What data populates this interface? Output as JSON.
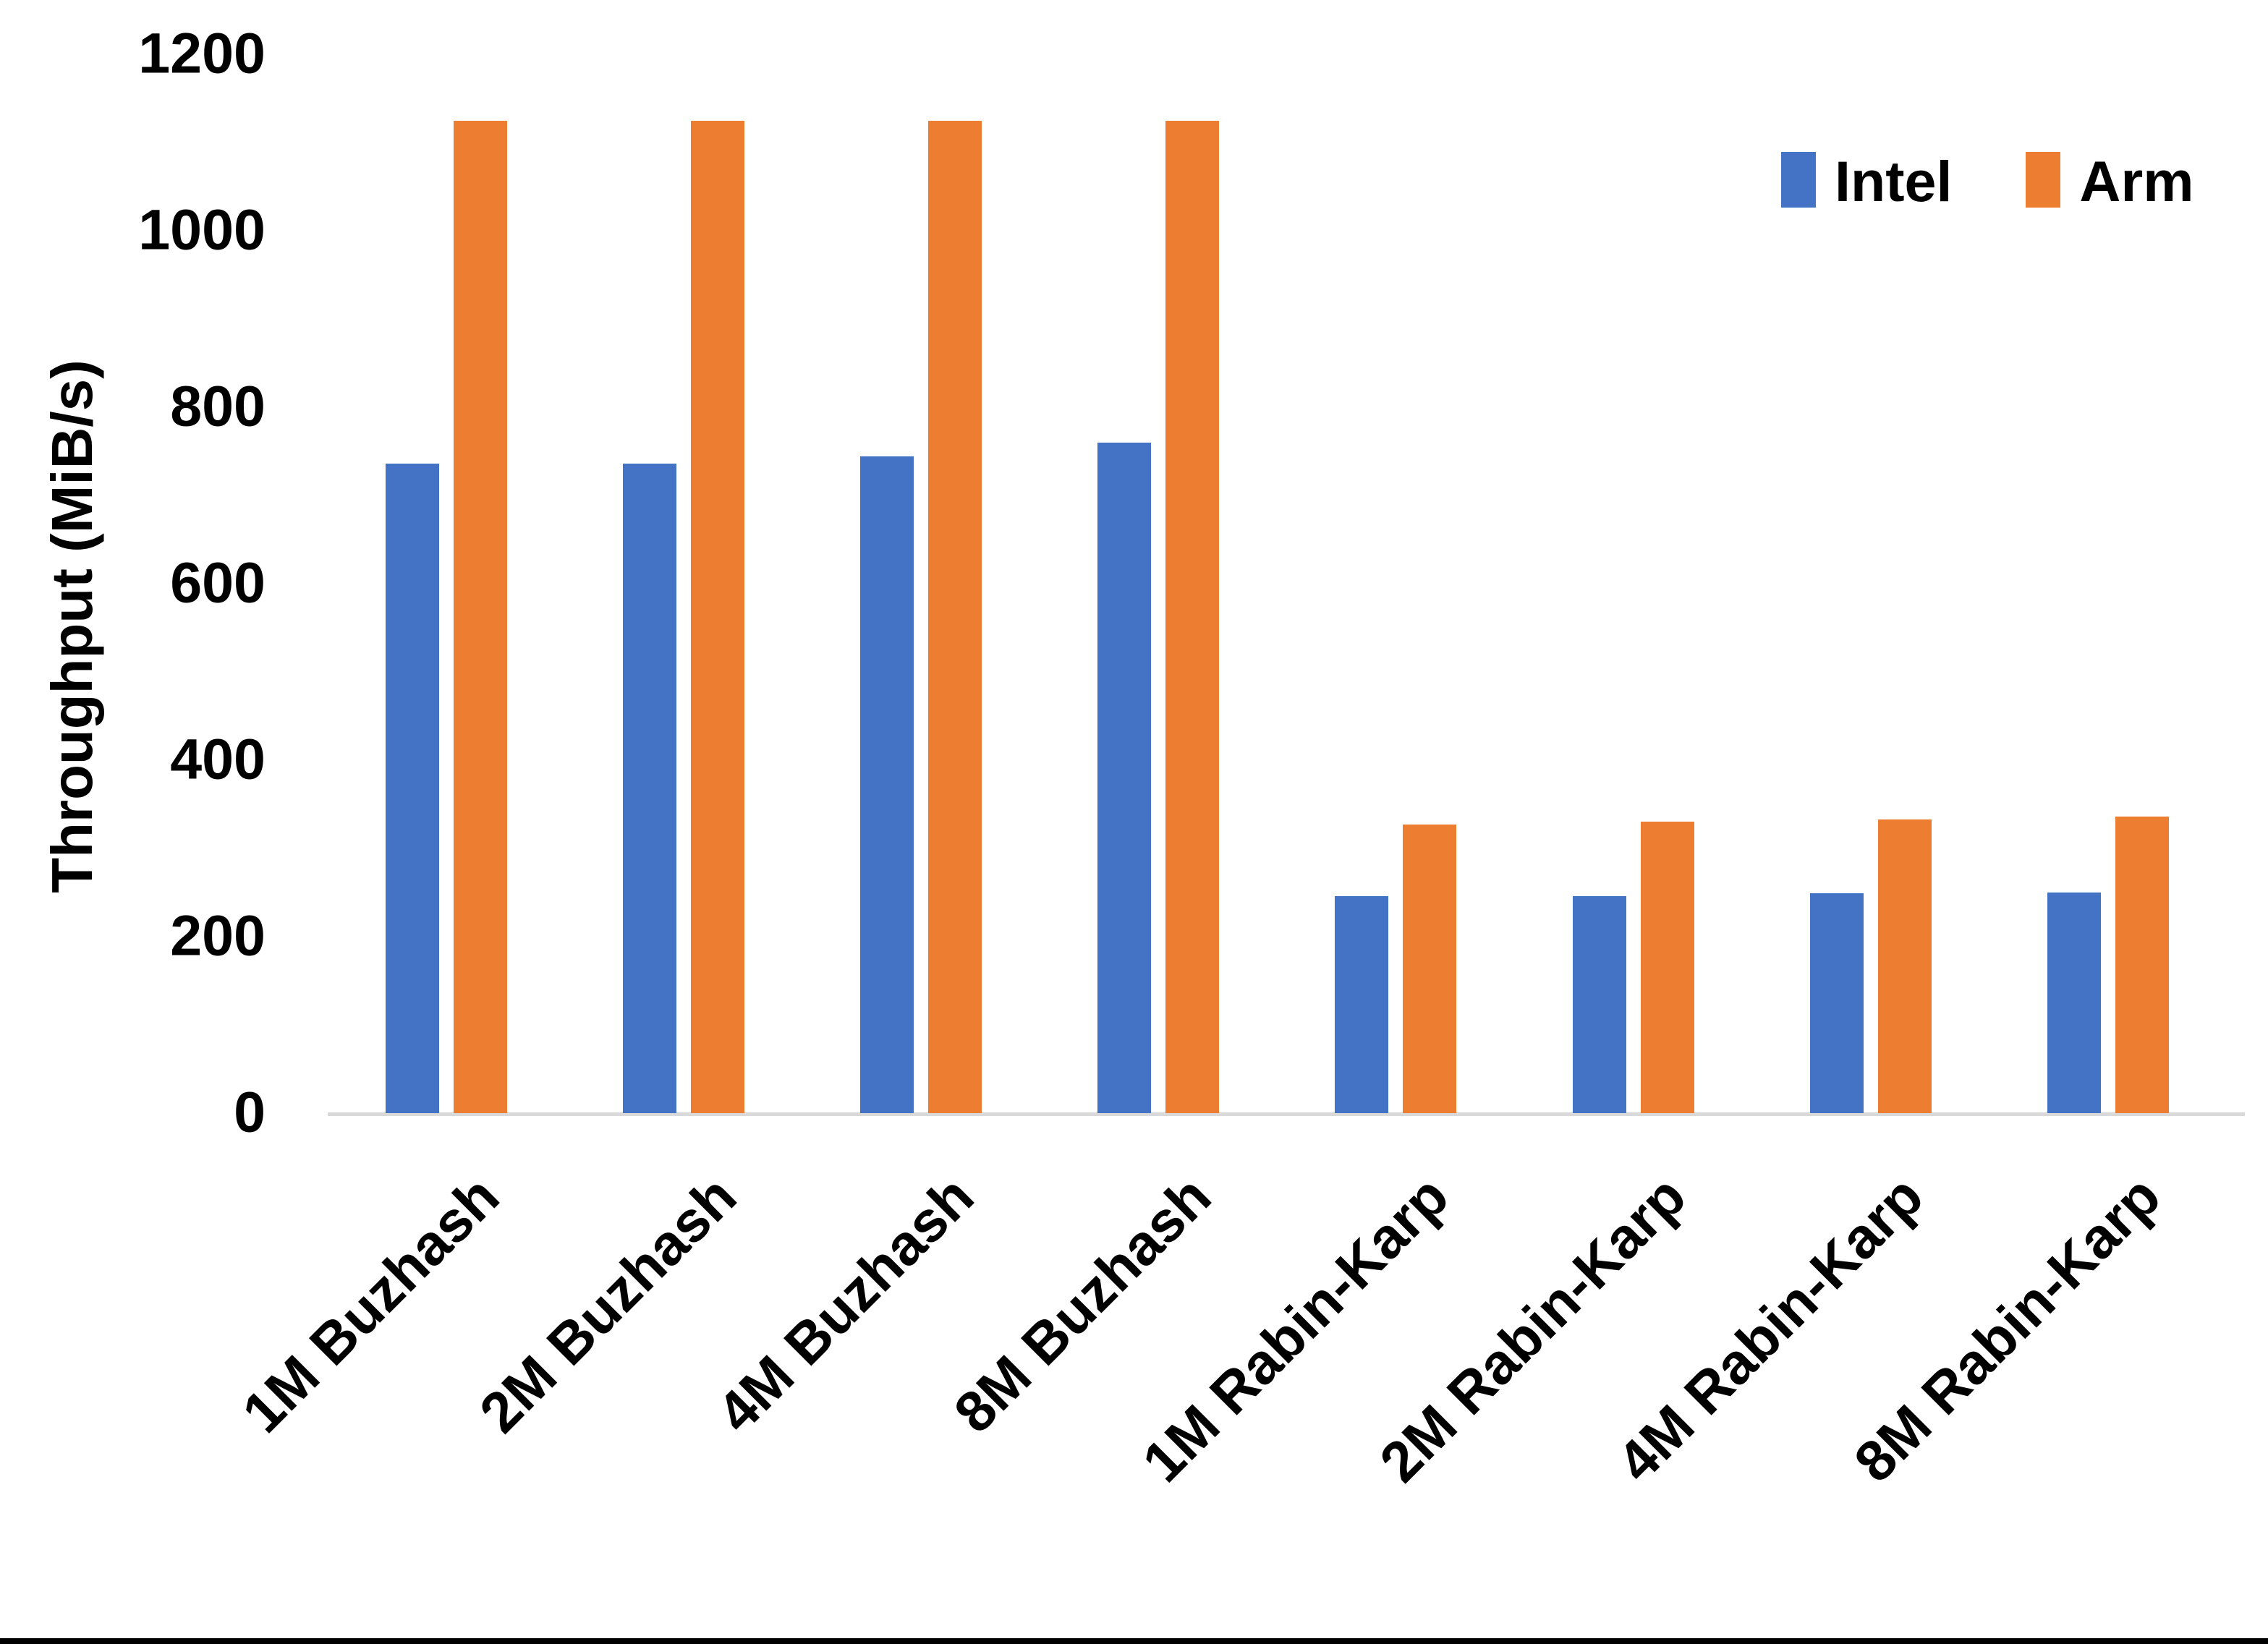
{
  "chart_data": {
    "type": "bar",
    "title": "",
    "xlabel": "",
    "ylabel": "Throughput (MiB/s)",
    "categories": [
      "1M Buzhash",
      "2M Buzhash",
      "4M Buzhash",
      "8M Buzhash",
      "1M Rabin-Karp",
      "2M Rabin-Karp",
      "4M Rabin-Karp",
      "8M Rabin-Karp"
    ],
    "series": [
      {
        "name": "Intel",
        "color": "#4472C4",
        "values": [
          736,
          736,
          744,
          760,
          246,
          246,
          249,
          250
        ]
      },
      {
        "name": "Arm",
        "color": "#ED7D31",
        "values": [
          1125,
          1125,
          1125,
          1125,
          327,
          330,
          333,
          336
        ]
      }
    ],
    "ylim": [
      0,
      1200
    ],
    "yticks": [
      0,
      200,
      400,
      600,
      800,
      1000,
      1200
    ],
    "grid": false,
    "legend_position": "top-right",
    "legend_entries": [
      "Intel",
      "Arm"
    ]
  }
}
